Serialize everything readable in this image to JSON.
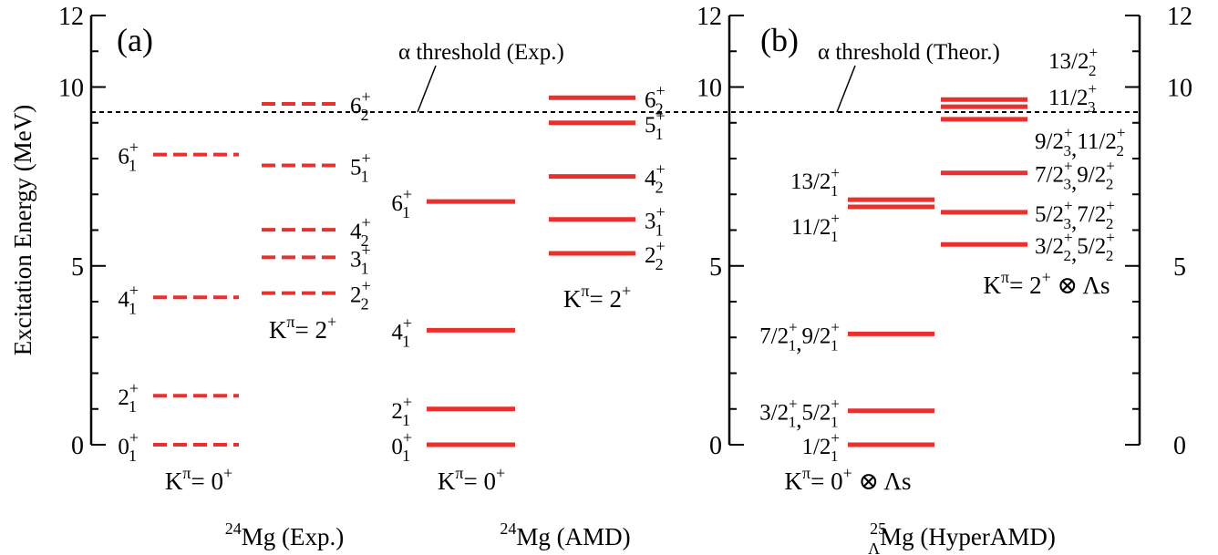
{
  "chart_data": {
    "type": "level-scheme",
    "ylabel": "Excitation Energy (MeV)",
    "ylim": [
      0,
      12
    ],
    "y_ticks_major": [
      0,
      5,
      10,
      12
    ],
    "alpha_threshold": 9.3,
    "colors": {
      "level": "#e8302f",
      "threshold": "#000000",
      "axis": "#000000"
    },
    "panels": [
      {
        "id": "a",
        "label": "(a)",
        "threshold_label": "α threshold (Exp.)",
        "spectra": [
          {
            "name": "24Mg (Exp.)",
            "name_parts": {
              "pre": "24",
              "base": "Mg (Exp.)"
            },
            "line_style": "dashed",
            "bands": [
              {
                "band_label": "Kπ= 0+",
                "levels": [
                  {
                    "E": 0.0,
                    "J": "0",
                    "n": "1"
                  },
                  {
                    "E": 1.37,
                    "J": "2",
                    "n": "1"
                  },
                  {
                    "E": 4.12,
                    "J": "4",
                    "n": "1"
                  },
                  {
                    "E": 8.11,
                    "J": "6",
                    "n": "1"
                  }
                ]
              },
              {
                "band_label": "Kπ= 2+",
                "levels": [
                  {
                    "E": 4.24,
                    "J": "2",
                    "n": "2"
                  },
                  {
                    "E": 5.24,
                    "J": "3",
                    "n": "1"
                  },
                  {
                    "E": 6.01,
                    "J": "4",
                    "n": "2"
                  },
                  {
                    "E": 7.81,
                    "J": "5",
                    "n": "1"
                  },
                  {
                    "E": 9.53,
                    "J": "6",
                    "n": "2"
                  }
                ]
              }
            ]
          },
          {
            "name": "24Mg (AMD)",
            "name_parts": {
              "pre": "24",
              "base": "Mg (AMD)"
            },
            "line_style": "solid",
            "bands": [
              {
                "band_label": "Kπ= 0+",
                "levels": [
                  {
                    "E": 0.0,
                    "J": "0",
                    "n": "1"
                  },
                  {
                    "E": 1.0,
                    "J": "2",
                    "n": "1"
                  },
                  {
                    "E": 3.2,
                    "J": "4",
                    "n": "1"
                  },
                  {
                    "E": 6.8,
                    "J": "6",
                    "n": "1"
                  }
                ]
              },
              {
                "band_label": "Kπ= 2+",
                "levels": [
                  {
                    "E": 5.35,
                    "J": "2",
                    "n": "2"
                  },
                  {
                    "E": 6.3,
                    "J": "3",
                    "n": "1"
                  },
                  {
                    "E": 7.5,
                    "J": "4",
                    "n": "2"
                  },
                  {
                    "E": 9.0,
                    "J": "5",
                    "n": "1"
                  },
                  {
                    "E": 9.7,
                    "J": "6",
                    "n": "2"
                  }
                ]
              }
            ]
          }
        ]
      },
      {
        "id": "b",
        "label": "(b)",
        "threshold_label": "α threshold (Theor.)",
        "spectra": [
          {
            "name": "25ΛMg (HyperAMD)",
            "name_parts": {
              "sup": "25",
              "sub": "Λ",
              "base": "Mg (HyperAMD)"
            },
            "line_style": "solid",
            "bands": [
              {
                "band_label": "Kπ= 0+⊗Λs",
                "levels": [
                  {
                    "E": 0.0,
                    "label": [
                      [
                        "1/2",
                        "1"
                      ]
                    ]
                  },
                  {
                    "E": 0.95,
                    "label": [
                      [
                        "3/2",
                        "1"
                      ],
                      [
                        "5/2",
                        "1"
                      ]
                    ]
                  },
                  {
                    "E": 3.1,
                    "label": [
                      [
                        "7/2",
                        "1"
                      ],
                      [
                        "9/2",
                        "1"
                      ]
                    ]
                  },
                  {
                    "E": 6.65,
                    "label": [
                      [
                        "11/2",
                        "1"
                      ]
                    ]
                  },
                  {
                    "E": 6.85,
                    "label": [
                      [
                        "13/2",
                        "1"
                      ]
                    ]
                  }
                ]
              },
              {
                "band_label": "Kπ= 2+⊗Λs",
                "levels": [
                  {
                    "E": 5.6,
                    "label": [
                      [
                        "3/2",
                        "2"
                      ],
                      [
                        "5/2",
                        "2"
                      ]
                    ]
                  },
                  {
                    "E": 6.5,
                    "label": [
                      [
                        "5/2",
                        "3"
                      ],
                      [
                        "7/2",
                        "2"
                      ]
                    ]
                  },
                  {
                    "E": 7.6,
                    "label": [
                      [
                        "7/2",
                        "3"
                      ],
                      [
                        "9/2",
                        "2"
                      ]
                    ]
                  },
                  {
                    "E": 9.1,
                    "label": [
                      [
                        "9/2",
                        "3"
                      ],
                      [
                        "11/2",
                        "2"
                      ]
                    ]
                  },
                  {
                    "E": 9.45,
                    "label": [
                      [
                        "11/2",
                        "3"
                      ]
                    ]
                  },
                  {
                    "E": 9.65,
                    "label": [
                      [
                        "13/2",
                        "2"
                      ]
                    ]
                  }
                ]
              }
            ]
          }
        ]
      }
    ]
  }
}
